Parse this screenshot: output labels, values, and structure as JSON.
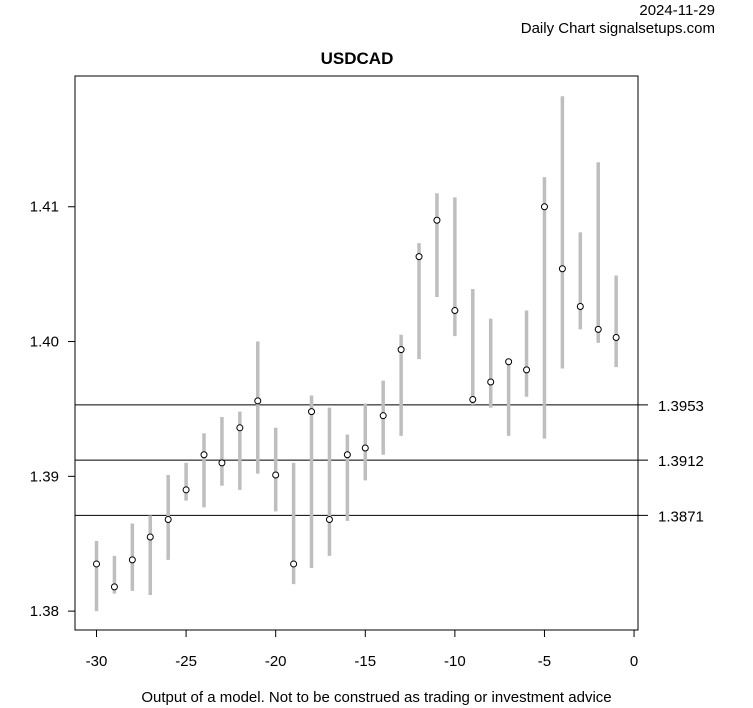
{
  "header": {
    "date": "2024-11-29",
    "source": "Daily Chart signalsetups.com"
  },
  "footer": {
    "disclaimer": "Output of a model. Not to be construed as trading or investment advice"
  },
  "colors": {
    "bar": "#bebebe",
    "line": "#000000",
    "point_fill": "#ffffff"
  },
  "chart_data": {
    "type": "range-bar",
    "title": "USDCAD",
    "xlabel": "",
    "ylabel": "",
    "xlim": [
      -31.2,
      0.22
    ],
    "ylim": [
      1.3786,
      1.4197
    ],
    "x_ticks": [
      -30,
      -25,
      -20,
      -15,
      -10,
      -5,
      0
    ],
    "x_tick_labels": [
      "-30",
      "-25",
      "-20",
      "-15",
      "-10",
      "-5",
      "0"
    ],
    "y_ticks": [
      1.38,
      1.39,
      1.4,
      1.41
    ],
    "y_tick_labels": [
      "1.38",
      "1.39",
      "1.40",
      "1.41"
    ],
    "x": [
      -30,
      -29,
      -28,
      -27,
      -26,
      -25,
      -24,
      -23,
      -22,
      -21,
      -20,
      -19,
      -18,
      -17,
      -16,
      -15,
      -14,
      -13,
      -12,
      -11,
      -10,
      -9,
      -8,
      -7,
      -6,
      -5,
      -4,
      -3,
      -2,
      -1
    ],
    "close": [
      1.3835,
      1.3818,
      1.3838,
      1.3855,
      1.3868,
      1.389,
      1.3916,
      1.391,
      1.3936,
      1.3956,
      1.3901,
      1.3835,
      1.3948,
      1.3868,
      1.3916,
      1.3921,
      1.3945,
      1.3994,
      1.4063,
      1.409,
      1.4023,
      1.3957,
      1.397,
      1.3985,
      1.3979,
      1.41,
      1.4054,
      1.4026,
      1.4009,
      1.4003
    ],
    "high": [
      1.3852,
      1.3841,
      1.3865,
      1.3871,
      1.3901,
      1.391,
      1.3932,
      1.3944,
      1.3948,
      1.4,
      1.3936,
      1.391,
      1.396,
      1.3951,
      1.3931,
      1.3954,
      1.3971,
      1.4005,
      1.4073,
      1.411,
      1.4107,
      1.4039,
      1.4017,
      1.3987,
      1.4023,
      1.4122,
      1.4182,
      1.4081,
      1.4133,
      1.4049
    ],
    "low": [
      1.38,
      1.3813,
      1.3815,
      1.3812,
      1.3838,
      1.3882,
      1.3877,
      1.3893,
      1.389,
      1.3902,
      1.3874,
      1.382,
      1.3832,
      1.3841,
      1.3867,
      1.3897,
      1.3916,
      1.393,
      1.3987,
      1.4033,
      1.4004,
      1.3953,
      1.3951,
      1.393,
      1.3959,
      1.3928,
      1.398,
      1.4009,
      1.3999,
      1.3981
    ],
    "levels": [
      {
        "value": 1.3953,
        "label": "1.3953"
      },
      {
        "value": 1.3912,
        "label": "1.3912"
      },
      {
        "value": 1.3871,
        "label": "1.3871"
      }
    ]
  }
}
